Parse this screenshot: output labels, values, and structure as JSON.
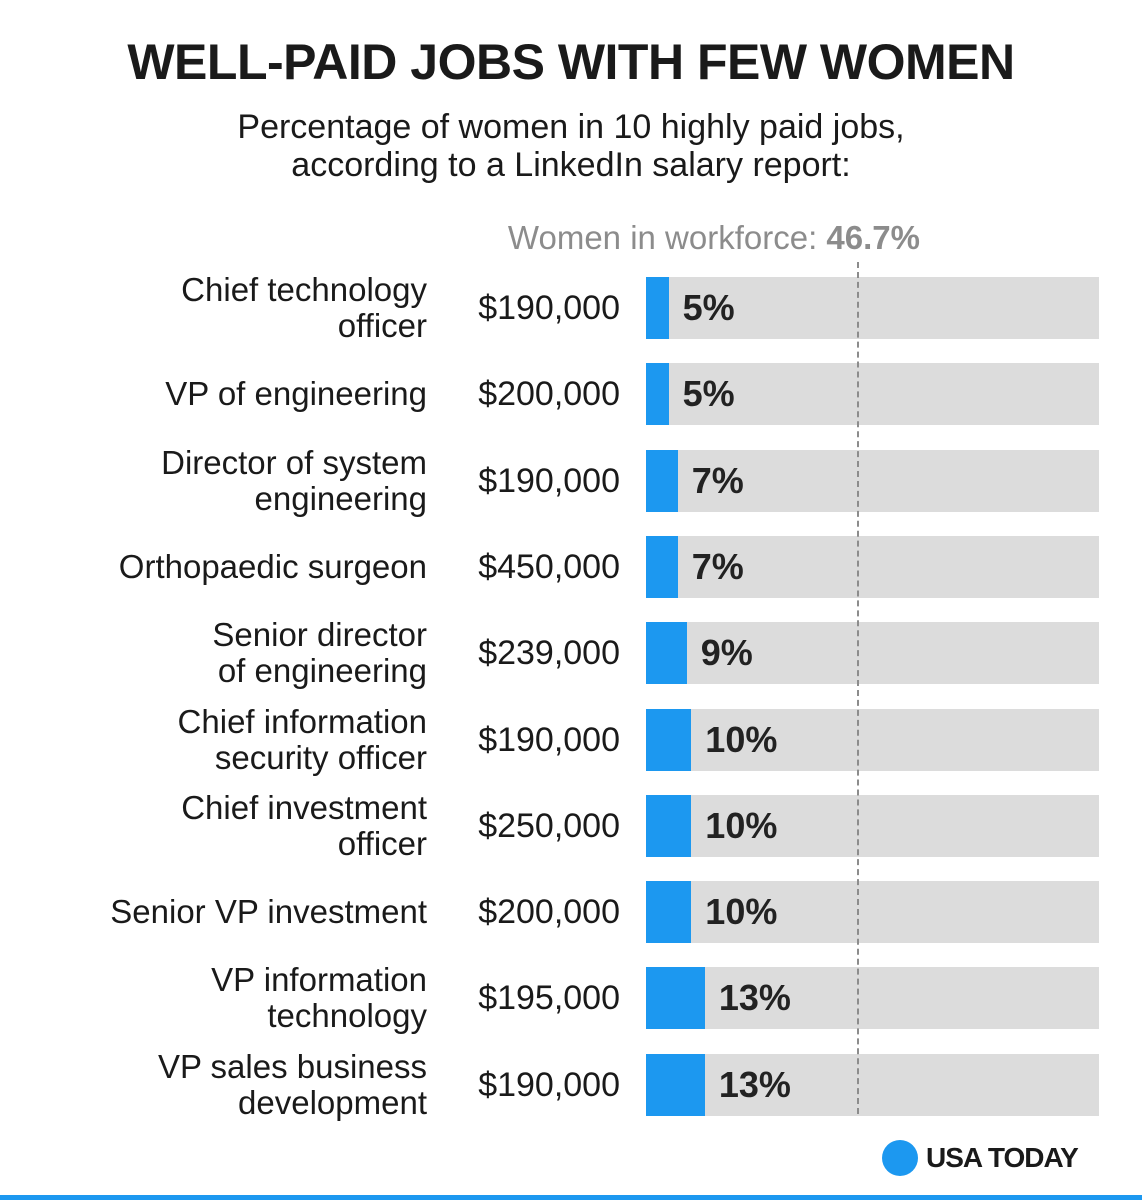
{
  "header": {
    "title": "WELL-PAID JOBS WITH FEW WOMEN",
    "subtitle_line1": "Percentage of women in 10 highly paid jobs,",
    "subtitle_line2": "according to a LinkedIn salary report:"
  },
  "reference": {
    "label": "Women in workforce:",
    "value_text": "46.7%",
    "value": 46.7
  },
  "colors": {
    "bar": "#1c98f0",
    "track": "#dcdcdc",
    "reference": "#8c8c8c",
    "accent": "#1c98f0"
  },
  "chart_data": {
    "type": "bar",
    "orientation": "horizontal",
    "xlim": [
      0,
      100
    ],
    "categories": [
      [
        "Chief technology",
        "officer"
      ],
      [
        "VP of engineering"
      ],
      [
        "Director of system",
        "engineering"
      ],
      [
        "Orthopaedic surgeon"
      ],
      [
        "Senior director",
        "of engineering"
      ],
      [
        "Chief information",
        "security officer"
      ],
      [
        "Chief investment",
        "officer"
      ],
      [
        "Senior VP investment"
      ],
      [
        "VP information",
        "technology"
      ],
      [
        "VP sales business",
        "development"
      ]
    ],
    "salaries": [
      "$190,000",
      "$200,000",
      "$190,000",
      "$450,000",
      "$239,000",
      "$190,000",
      "$250,000",
      "$200,000",
      "$195,000",
      "$190,000"
    ],
    "values": [
      5,
      5,
      7,
      7,
      9,
      10,
      10,
      10,
      13,
      13
    ],
    "value_labels": [
      "5%",
      "5%",
      "7%",
      "7%",
      "9%",
      "10%",
      "10%",
      "10%",
      "13%",
      "13%"
    ]
  },
  "footer": {
    "logo_text": "USA TODAY"
  }
}
